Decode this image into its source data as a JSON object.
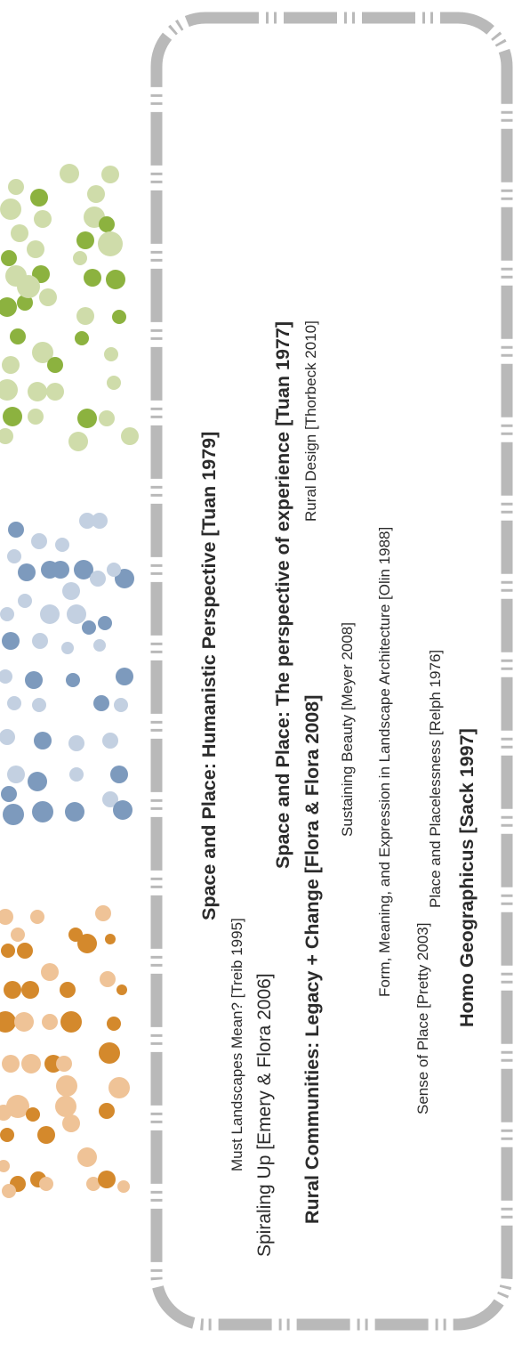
{
  "dots": {
    "orange": {
      "light": "#efc397",
      "dark": "#d4892c"
    },
    "blue": {
      "light": "#c3d0e1",
      "dark": "#7d9abd"
    },
    "green": {
      "light": "#cfdcaa",
      "dark": "#8cb23f"
    }
  },
  "frame": {
    "color": "#b9b9b9"
  },
  "texts": {
    "tuan1979": "Space and Place: Humanistic Perspective [Tuan 1979]",
    "treib": "Must Landscapes Mean? [Treib 1995]",
    "tuan1977": "Space and Place: The perspective of experience [Tuan 1977]",
    "thorbeck": "Rural Design [Thorbeck 2010]",
    "emery": "Spiraling Up [Emery & Flora 2006]",
    "flora": "Rural Communities: Legacy + Change [Flora & Flora 2008]",
    "meyer": "Sustaining Beauty [Meyer 2008]",
    "olin": "Form, Meaning, and Expression in Landscape Architecture [Olin 1988]",
    "pretty": "Sense of Place [Pretty 2003]",
    "relph": "Place and Placelessness [Relph 1976]",
    "sack": "Homo Geographicus [Sack 1997]"
  }
}
